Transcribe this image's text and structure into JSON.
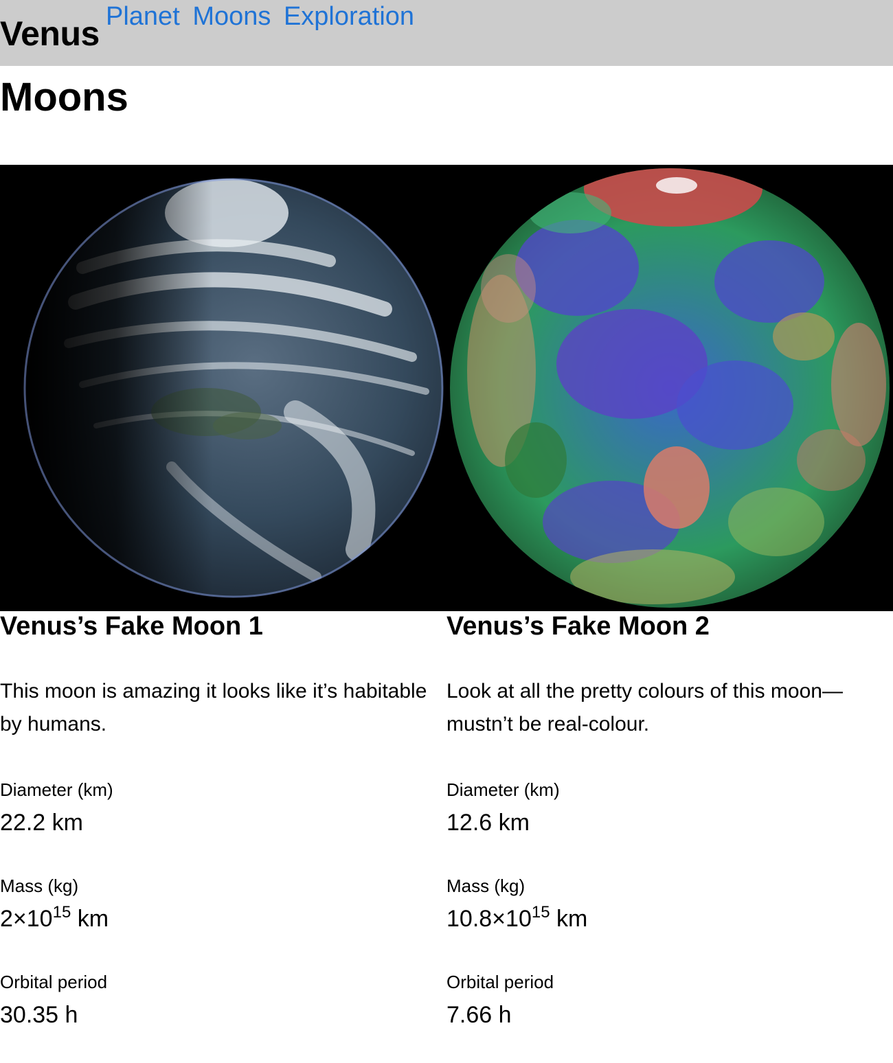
{
  "header": {
    "title": "Venus",
    "nav": [
      {
        "label": "Planet"
      },
      {
        "label": "Moons"
      },
      {
        "label": "Exploration"
      }
    ]
  },
  "section": {
    "title": "Moons"
  },
  "moons": [
    {
      "name": "Venus’s Fake Moon 1",
      "description": "This moon is amazing it looks like it’s habitable by humans.",
      "diameter_label": "Diameter (km)",
      "diameter_value": "22.2 km",
      "mass_label": "Mass (kg)",
      "mass_mantissa": "2×10",
      "mass_exponent": "15",
      "mass_unit": " km",
      "orbital_label": "Orbital period",
      "orbital_value": "30.35 h"
    },
    {
      "name": "Venus’s Fake Moon 2",
      "description": "Look at all the pretty colours of this moon—mustn’t be real-colour.",
      "diameter_label": "Diameter (km)",
      "diameter_value": "12.6 km",
      "mass_label": "Mass (kg)",
      "mass_mantissa": "10.8×10",
      "mass_exponent": "15",
      "mass_unit": " km",
      "orbital_label": "Orbital period",
      "orbital_value": "7.66 h"
    }
  ]
}
